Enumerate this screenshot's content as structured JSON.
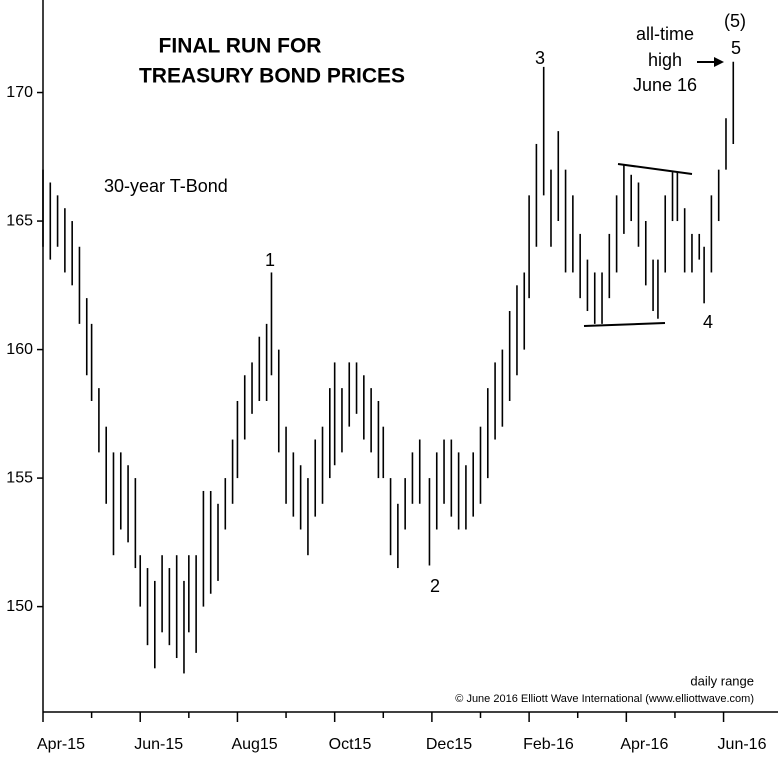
{
  "chart_data": {
    "type": "range",
    "title_lines": [
      "FINAL RUN FOR",
      "TREASURY BOND PRICES"
    ],
    "subtitle": "30-year T-Bond",
    "note": "daily range",
    "credit": "© June 2016 Elliott Wave International (www.elliottwave.com)",
    "annotations": [
      "1",
      "2",
      "3",
      "4",
      "5",
      "(5)",
      "all-time",
      "high",
      "June 16"
    ],
    "color": "#000000",
    "x": [
      0,
      0.15,
      0.3,
      0.45,
      0.6,
      0.75,
      0.9,
      1.0,
      1.15,
      1.3,
      1.45,
      1.6,
      1.75,
      1.9,
      2.0,
      2.15,
      2.3,
      2.45,
      2.6,
      2.75,
      2.9,
      3.0,
      3.15,
      3.3,
      3.45,
      3.6,
      3.75,
      3.9,
      4.0,
      4.15,
      4.3,
      4.45,
      4.6,
      4.7,
      4.85,
      5.0,
      5.15,
      5.3,
      5.45,
      5.6,
      5.75,
      5.9,
      6.0,
      6.15,
      6.3,
      6.45,
      6.6,
      6.75,
      6.9,
      7.0,
      7.15,
      7.3,
      7.45,
      7.6,
      7.75,
      7.95,
      8.1,
      8.25,
      8.4,
      8.55,
      8.7,
      8.85,
      9.0,
      9.15,
      9.3,
      9.45,
      9.6,
      9.75,
      9.9,
      10.0,
      10.15,
      10.3,
      10.45,
      10.6,
      10.75,
      10.9,
      11.05,
      11.2,
      11.35,
      11.5,
      11.65,
      11.8,
      11.95,
      12.1,
      12.25,
      12.4,
      12.55,
      12.65,
      12.8,
      12.95,
      13.05,
      13.2,
      13.35,
      13.5,
      13.6,
      13.75,
      13.9,
      14.05,
      14.2
    ],
    "low": [
      164,
      163.5,
      164,
      163,
      162.5,
      161,
      159,
      158,
      156,
      154,
      152,
      153,
      152.5,
      151.5,
      150,
      148.5,
      147.6,
      149,
      148.5,
      148,
      147.4,
      149,
      148.2,
      150,
      150.5,
      151,
      153,
      154,
      155,
      156.5,
      157.5,
      158,
      158,
      159,
      156,
      154,
      153.5,
      153,
      152,
      153.5,
      154,
      155,
      155.5,
      156,
      157,
      157.5,
      156.5,
      156,
      155,
      155,
      152,
      151.5,
      153,
      154,
      154,
      151.6,
      153,
      154,
      153.5,
      153,
      153,
      153.5,
      154,
      155,
      156.5,
      157,
      158,
      159,
      160,
      162,
      164,
      166,
      164,
      165,
      163,
      163,
      162,
      161.5,
      161,
      161,
      162,
      163,
      164.5,
      165,
      164,
      162.5,
      161.5,
      161.2,
      163,
      165,
      165,
      163,
      163,
      163.5,
      161.8,
      163,
      165,
      167,
      168
    ],
    "high": [
      167,
      166.5,
      166,
      165.5,
      165,
      164,
      162,
      161,
      158.5,
      157,
      156,
      156,
      155.5,
      155,
      152,
      151.5,
      151,
      152,
      151.5,
      152,
      151,
      152,
      152,
      154.5,
      154.5,
      154,
      155,
      156.5,
      158,
      159,
      159.5,
      160.5,
      161,
      163,
      160,
      157,
      156,
      155.5,
      155,
      156.5,
      157,
      158.5,
      159.5,
      158.5,
      159.5,
      159.5,
      159,
      158.5,
      158,
      157,
      155,
      154,
      155,
      156,
      156.5,
      155,
      156,
      156.5,
      156.5,
      156,
      155.5,
      156,
      157,
      158.5,
      159.5,
      160,
      161.5,
      162.5,
      163,
      166,
      168,
      171,
      167,
      168.5,
      167,
      166,
      164.5,
      163.5,
      163,
      163,
      164.5,
      166,
      167.2,
      166.8,
      166.5,
      165,
      163.5,
      163.5,
      166,
      166.9,
      166.9,
      165.5,
      164.5,
      164.5,
      164,
      166,
      167,
      169,
      171.2
    ],
    "xlim": [
      0,
      15.12
    ],
    "ylim": [
      145.9,
      173.6
    ],
    "yticks": [
      150,
      155,
      160,
      165,
      170
    ],
    "xticks": [
      {
        "value": 0,
        "label": "Apr-15"
      },
      {
        "value": 1,
        "label": null
      },
      {
        "value": 2,
        "label": "Jun-15"
      },
      {
        "value": 3,
        "label": null
      },
      {
        "value": 4,
        "label": "Aug15"
      },
      {
        "value": 5,
        "label": null
      },
      {
        "value": 6,
        "label": "Oct15"
      },
      {
        "value": 7,
        "label": null
      },
      {
        "value": 8,
        "label": "Dec15"
      },
      {
        "value": 9,
        "label": null
      },
      {
        "value": 10,
        "label": "Feb-16"
      },
      {
        "value": 11,
        "label": null
      },
      {
        "value": 12,
        "label": "Apr-16"
      },
      {
        "value": 13,
        "label": null
      },
      {
        "value": 14,
        "label": "Jun-16"
      }
    ]
  }
}
